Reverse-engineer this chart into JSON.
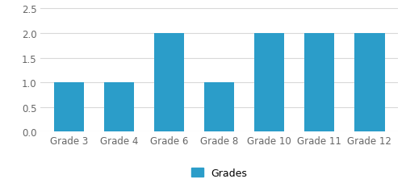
{
  "categories": [
    "Grade 3",
    "Grade 4",
    "Grade 6",
    "Grade 8",
    "Grade 10",
    "Grade 11",
    "Grade 12"
  ],
  "values": [
    1,
    1,
    2,
    1,
    2,
    2,
    2
  ],
  "bar_color": "#2b9dc9",
  "ylim": [
    0,
    2.5
  ],
  "yticks": [
    0,
    0.5,
    1.0,
    1.5,
    2.0,
    2.5
  ],
  "legend_label": "Grades",
  "background_color": "#ffffff",
  "grid_color": "#d8d8d8",
  "tick_fontsize": 8.5,
  "legend_fontsize": 9,
  "bar_width": 0.6
}
